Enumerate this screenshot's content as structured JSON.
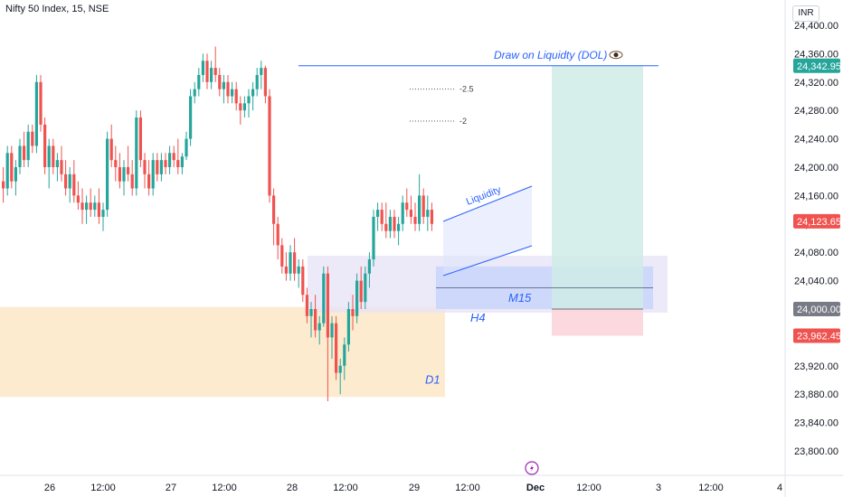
{
  "header": {
    "title": "Nifty 50 Index, 15, NSE",
    "currency": "INR"
  },
  "colors": {
    "up": "#26a69a",
    "down": "#ef5350",
    "accent": "#2962ff",
    "d1_zone": "#fde7c8",
    "h4_zone": "#e7e4f6",
    "m15_zone": "#c9d5fb",
    "target_zone": "#cfece6",
    "stop_zone": "#fbd5dc"
  },
  "icons": {
    "eye": "eye-icon",
    "dividends": "lightning-icon"
  },
  "chart_data": {
    "type": "candlestick",
    "ylim": [
      23780,
      24440
    ],
    "price_ticks": [
      "24,400.00",
      "24,360.00",
      "24,320.00",
      "24,280.00",
      "24,240.00",
      "24,200.00",
      "24,160.00",
      "24,120.00",
      "24,080.00",
      "24,040.00",
      "24,000.00",
      "23,960.00",
      "23,920.00",
      "23,880.00",
      "23,840.00",
      "23,800.00"
    ],
    "price_tick_values": [
      24400,
      24360,
      24320,
      24280,
      24240,
      24200,
      24160,
      24120,
      24080,
      24040,
      24000,
      23960,
      23920,
      23880,
      23840,
      23800
    ],
    "time_ticks": [
      "26",
      "12:00",
      "27",
      "12:00",
      "28",
      "12:00",
      "29",
      "12:00",
      "Dec",
      "12:00",
      "3",
      "12:00",
      "4"
    ],
    "badges": [
      {
        "label": "24,342.95",
        "value": 24342.95,
        "kind": "target"
      },
      {
        "label": "24,123.65",
        "value": 24123.65,
        "kind": "last"
      },
      {
        "label": "24,000.00",
        "value": 24000.0,
        "kind": "entry"
      },
      {
        "label": "23,962.45",
        "value": 23962.45,
        "kind": "stop"
      }
    ],
    "annotations": {
      "dol": "Draw on Liquidty (DOL)",
      "liquidity": "Liquidity",
      "m15": "M15",
      "h4": "H4",
      "d1": "D1",
      "fib_a": "-2.5",
      "fib_b": "-2"
    },
    "levels": {
      "dol": 24342.95,
      "fib_a": 24310,
      "fib_b": 24265,
      "h4_top": 24075,
      "h4_bottom": 23995,
      "m15_top": 24060,
      "m15_bottom": 24000,
      "d1_top": 24003,
      "d1_bottom": 23876,
      "target": 24342.95,
      "entry": 24000,
      "stop": 23962.45
    },
    "candles": [
      [
        24180,
        24200,
        24150,
        24170
      ],
      [
        24170,
        24230,
        24160,
        24220
      ],
      [
        24220,
        24230,
        24170,
        24180
      ],
      [
        24180,
        24210,
        24160,
        24200
      ],
      [
        24200,
        24240,
        24190,
        24230
      ],
      [
        24230,
        24250,
        24200,
        24210
      ],
      [
        24210,
        24260,
        24200,
        24250
      ],
      [
        24250,
        24260,
        24220,
        24230
      ],
      [
        24230,
        24330,
        24220,
        24320
      ],
      [
        24320,
        24330,
        24250,
        24260
      ],
      [
        24260,
        24270,
        24190,
        24200
      ],
      [
        24200,
        24240,
        24170,
        24230
      ],
      [
        24230,
        24240,
        24190,
        24200
      ],
      [
        24200,
        24220,
        24180,
        24210
      ],
      [
        24210,
        24230,
        24180,
        24190
      ],
      [
        24190,
        24210,
        24160,
        24170
      ],
      [
        24170,
        24200,
        24150,
        24190
      ],
      [
        24190,
        24210,
        24150,
        24160
      ],
      [
        24160,
        24180,
        24140,
        24150
      ],
      [
        24150,
        24170,
        24120,
        24140
      ],
      [
        24140,
        24160,
        24120,
        24150
      ],
      [
        24150,
        24170,
        24130,
        24140
      ],
      [
        24140,
        24160,
        24130,
        24150
      ],
      [
        24150,
        24170,
        24120,
        24130
      ],
      [
        24130,
        24150,
        24110,
        24140
      ],
      [
        24140,
        24250,
        24130,
        24240
      ],
      [
        24240,
        24260,
        24200,
        24210
      ],
      [
        24210,
        24230,
        24180,
        24200
      ],
      [
        24200,
        24220,
        24170,
        24180
      ],
      [
        24180,
        24210,
        24160,
        24200
      ],
      [
        24200,
        24230,
        24180,
        24190
      ],
      [
        24190,
        24210,
        24160,
        24170
      ],
      [
        24170,
        24280,
        24160,
        24270
      ],
      [
        24270,
        24280,
        24200,
        24210
      ],
      [
        24210,
        24220,
        24170,
        24190
      ],
      [
        24190,
        24210,
        24160,
        24170
      ],
      [
        24170,
        24220,
        24160,
        24210
      ],
      [
        24210,
        24220,
        24180,
        24190
      ],
      [
        24190,
        24220,
        24180,
        24210
      ],
      [
        24210,
        24220,
        24190,
        24200
      ],
      [
        24200,
        24230,
        24190,
        24220
      ],
      [
        24220,
        24230,
        24200,
        24210
      ],
      [
        24210,
        24240,
        24190,
        24200
      ],
      [
        24200,
        24220,
        24190,
        24215
      ],
      [
        24215,
        24250,
        24210,
        24240
      ],
      [
        24240,
        24310,
        24230,
        24300
      ],
      [
        24300,
        24320,
        24290,
        24310
      ],
      [
        24310,
        24340,
        24300,
        24330
      ],
      [
        24330,
        24360,
        24320,
        24350
      ],
      [
        24350,
        24360,
        24310,
        24320
      ],
      [
        24320,
        24350,
        24310,
        24340
      ],
      [
        24340,
        24370,
        24320,
        24330
      ],
      [
        24330,
        24340,
        24300,
        24310
      ],
      [
        24310,
        24330,
        24290,
        24320
      ],
      [
        24320,
        24330,
        24290,
        24300
      ],
      [
        24300,
        24320,
        24290,
        24310
      ],
      [
        24310,
        24320,
        24280,
        24290
      ],
      [
        24290,
        24300,
        24260,
        24280
      ],
      [
        24280,
        24300,
        24270,
        24290
      ],
      [
        24290,
        24310,
        24270,
        24300
      ],
      [
        24300,
        24320,
        24280,
        24310
      ],
      [
        24310,
        24340,
        24300,
        24330
      ],
      [
        24330,
        24350,
        24310,
        24340
      ],
      [
        24340,
        24343,
        24290,
        24300
      ],
      [
        24300,
        24310,
        24150,
        24160
      ],
      [
        24160,
        24170,
        24090,
        24120
      ],
      [
        24120,
        24130,
        24070,
        24090
      ],
      [
        24090,
        24100,
        24050,
        24060
      ],
      [
        24060,
        24080,
        24040,
        24050
      ],
      [
        24050,
        24090,
        24040,
        24080
      ],
      [
        24080,
        24100,
        24040,
        24050
      ],
      [
        24050,
        24070,
        24030,
        24060
      ],
      [
        24060,
        24070,
        24010,
        24020
      ],
      [
        24020,
        24030,
        23980,
        23990
      ],
      [
        23990,
        24010,
        23960,
        24000
      ],
      [
        24000,
        24020,
        23960,
        23970
      ],
      [
        23970,
        23990,
        23950,
        23980
      ],
      [
        23980,
        24060,
        23975,
        24050
      ],
      [
        24050,
        24060,
        23870,
        23960
      ],
      [
        23960,
        23990,
        23930,
        23980
      ],
      [
        23980,
        23990,
        23900,
        23910
      ],
      [
        23910,
        23930,
        23880,
        23920
      ],
      [
        23920,
        23960,
        23900,
        23950
      ],
      [
        23950,
        24010,
        23940,
        24000
      ],
      [
        24000,
        24020,
        23970,
        23990
      ],
      [
        23990,
        24050,
        23980,
        24040
      ],
      [
        24040,
        24060,
        24000,
        24010
      ],
      [
        24010,
        24060,
        24000,
        24050
      ],
      [
        24050,
        24080,
        24030,
        24070
      ],
      [
        24070,
        24140,
        24060,
        24130
      ],
      [
        24130,
        24150,
        24110,
        24140
      ],
      [
        24140,
        24150,
        24110,
        24120
      ],
      [
        24120,
        24150,
        24100,
        24110
      ],
      [
        24110,
        24140,
        24100,
        24130
      ],
      [
        24130,
        24140,
        24100,
        24110
      ],
      [
        24110,
        24130,
        24090,
        24120
      ],
      [
        24120,
        24160,
        24110,
        24150
      ],
      [
        24150,
        24170,
        24130,
        24140
      ],
      [
        24140,
        24160,
        24120,
        24130
      ],
      [
        24130,
        24150,
        24110,
        24120
      ],
      [
        24120,
        24190,
        24110,
        24160
      ],
      [
        24160,
        24170,
        24120,
        24130
      ],
      [
        24130,
        24160,
        24110,
        24140
      ],
      [
        24140,
        24150,
        24110,
        24120
      ]
    ]
  }
}
